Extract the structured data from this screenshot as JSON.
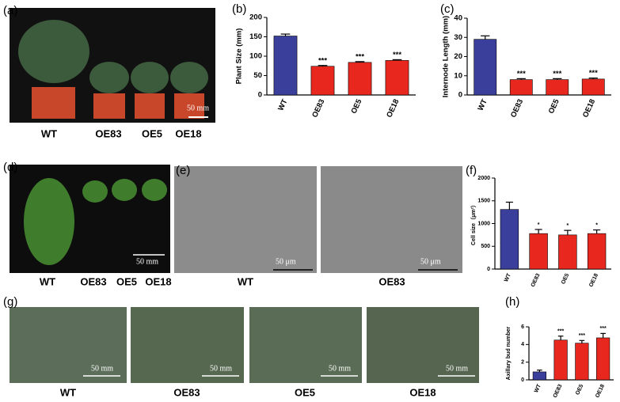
{
  "chart_data": [
    {
      "type": "bar",
      "panel_label": "(b)",
      "ylabel": "Plant Size (mm)",
      "categories": [
        "WT",
        "OE83",
        "OE5",
        "OE18"
      ],
      "values": [
        152,
        74,
        84,
        89
      ],
      "errors": [
        5,
        2,
        2,
        2
      ],
      "annotations": [
        null,
        "***",
        "***",
        "***"
      ],
      "colors": [
        "#3b3f9c",
        "#e8281e",
        "#e8281e",
        "#e8281e"
      ],
      "ylim": [
        0,
        200
      ],
      "yticks": [
        0,
        50,
        100,
        150,
        200
      ]
    },
    {
      "type": "bar",
      "panel_label": "(c)",
      "ylabel": "Internode Length (mm)",
      "categories": [
        "WT",
        "OE83",
        "OE5",
        "OE18"
      ],
      "values": [
        29,
        8,
        8,
        8.3
      ],
      "errors": [
        1.8,
        0.5,
        0.5,
        0.5
      ],
      "annotations": [
        null,
        "***",
        "***",
        "***"
      ],
      "colors": [
        "#3b3f9c",
        "#e8281e",
        "#e8281e",
        "#e8281e"
      ],
      "ylim": [
        0,
        40
      ],
      "yticks": [
        0,
        10,
        20,
        30,
        40
      ]
    },
    {
      "type": "bar",
      "panel_label": "(f)",
      "ylabel": "Cell size（μm²）",
      "categories": [
        "WT",
        "OE83",
        "OE5",
        "OE18"
      ],
      "values": [
        1310,
        780,
        750,
        780
      ],
      "errors": [
        160,
        90,
        100,
        80
      ],
      "annotations": [
        null,
        "*",
        "*",
        "*"
      ],
      "colors": [
        "#3b3f9c",
        "#e8281e",
        "#e8281e",
        "#e8281e"
      ],
      "ylim": [
        0,
        2000
      ],
      "yticks": [
        0,
        500,
        1000,
        1500,
        2000
      ]
    },
    {
      "type": "bar",
      "panel_label": "(h)",
      "ylabel": "Axillary bud number",
      "categories": [
        "WT",
        "OE83",
        "OE5",
        "OE18"
      ],
      "values": [
        0.9,
        4.5,
        4.15,
        4.75
      ],
      "errors": [
        0.2,
        0.45,
        0.3,
        0.5
      ],
      "annotations": [
        null,
        "***",
        "***",
        "***"
      ],
      "colors": [
        "#3b3f9c",
        "#e8281e",
        "#e8281e",
        "#e8281e"
      ],
      "ylim": [
        0,
        6
      ],
      "yticks": [
        0,
        2,
        4,
        6
      ]
    }
  ],
  "photos": {
    "a": {
      "label": "(a)",
      "captions": [
        "WT",
        "OE83",
        "OE5",
        "OE18"
      ],
      "scale": "50 mm"
    },
    "d": {
      "label": "(d)",
      "captions": [
        "WT",
        "OE83",
        "OE5",
        "OE18"
      ],
      "scale": "50 mm"
    },
    "e": {
      "label": "(e)",
      "captions": [
        "WT",
        "OE83"
      ],
      "scales": [
        "50 μm",
        "50 μm"
      ]
    },
    "g": {
      "label": "(g)",
      "captions": [
        "WT",
        "OE83",
        "OE5",
        "OE18"
      ],
      "scales": [
        "50 mm",
        "50 mm",
        "50 mm",
        "50 mm"
      ]
    }
  }
}
